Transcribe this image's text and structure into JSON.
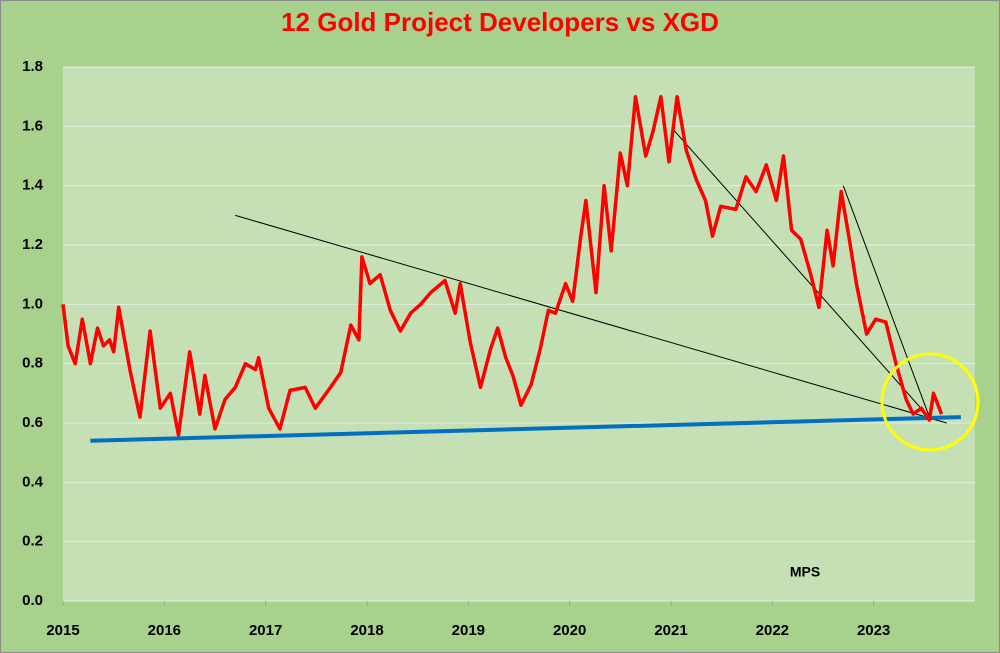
{
  "chart_data": {
    "type": "line",
    "title": "12 Gold Project Developers vs XGD",
    "annotation": "MPS",
    "x": [
      2015.0,
      2015.05,
      2015.12,
      2015.19,
      2015.27,
      2015.34,
      2015.4,
      2015.46,
      2015.5,
      2015.55,
      2015.66,
      2015.76,
      2015.86,
      2015.96,
      2016.06,
      2016.14,
      2016.25,
      2016.35,
      2016.4,
      2016.5,
      2016.6,
      2016.7,
      2016.8,
      2016.9,
      2016.93,
      2017.03,
      2017.14,
      2017.24,
      2017.39,
      2017.49,
      2017.64,
      2017.74,
      2017.84,
      2017.92,
      2017.95,
      2018.03,
      2018.13,
      2018.23,
      2018.33,
      2018.43,
      2018.53,
      2018.63,
      2018.77,
      2018.87,
      2018.92,
      2019.02,
      2019.12,
      2019.22,
      2019.29,
      2019.37,
      2019.44,
      2019.52,
      2019.62,
      2019.71,
      2019.79,
      2019.86,
      2019.96,
      2020.03,
      2020.11,
      2020.16,
      2020.26,
      2020.34,
      2020.41,
      2020.5,
      2020.57,
      2020.65,
      2020.75,
      2020.82,
      2020.9,
      2020.98,
      2021.06,
      2021.15,
      2021.25,
      2021.34,
      2021.41,
      2021.49,
      2021.64,
      2021.74,
      2021.84,
      2021.94,
      2022.04,
      2022.11,
      2022.19,
      2022.28,
      2022.38,
      2022.46,
      2022.54,
      2022.6,
      2022.68,
      2022.76,
      2022.83,
      2022.93,
      2023.02,
      2023.12,
      2023.22,
      2023.32,
      2023.39,
      2023.47,
      2023.55,
      2023.59,
      2023.67
    ],
    "series": [
      {
        "color": "#ff0000",
        "values": [
          1.0,
          0.86,
          0.8,
          0.95,
          0.8,
          0.92,
          0.86,
          0.88,
          0.84,
          0.99,
          0.78,
          0.62,
          0.91,
          0.65,
          0.7,
          0.56,
          0.84,
          0.63,
          0.76,
          0.58,
          0.68,
          0.72,
          0.8,
          0.78,
          0.82,
          0.65,
          0.58,
          0.71,
          0.72,
          0.65,
          0.72,
          0.77,
          0.93,
          0.88,
          1.16,
          1.07,
          1.1,
          0.98,
          0.91,
          0.97,
          1.0,
          1.04,
          1.08,
          0.97,
          1.07,
          0.87,
          0.72,
          0.85,
          0.92,
          0.82,
          0.76,
          0.66,
          0.73,
          0.85,
          0.98,
          0.97,
          1.07,
          1.01,
          1.23,
          1.35,
          1.04,
          1.4,
          1.18,
          1.51,
          1.4,
          1.7,
          1.5,
          1.58,
          1.7,
          1.48,
          1.7,
          1.52,
          1.42,
          1.35,
          1.23,
          1.33,
          1.32,
          1.43,
          1.38,
          1.47,
          1.35,
          1.5,
          1.25,
          1.22,
          1.1,
          0.99,
          1.25,
          1.13,
          1.38,
          1.22,
          1.07,
          0.9,
          0.95,
          0.94,
          0.8,
          0.68,
          0.63,
          0.65,
          0.61,
          0.7,
          0.63
        ]
      }
    ],
    "trendlines": [
      {
        "color": "#000000",
        "x": [
          2016.7,
          2023.72
        ],
        "y": [
          1.3,
          0.6
        ]
      },
      {
        "color": "#000000",
        "x": [
          2021.02,
          2023.57
        ],
        "y": [
          1.59,
          0.61
        ]
      },
      {
        "color": "#000000",
        "x": [
          2022.7,
          2023.55
        ],
        "y": [
          1.4,
          0.62
        ]
      },
      {
        "color": "#0070c0",
        "x": [
          2015.27,
          2023.86
        ],
        "y": [
          0.54,
          0.62
        ]
      }
    ],
    "xlim": [
      2015,
      2024
    ],
    "xticks": [
      2015,
      2016,
      2017,
      2018,
      2019,
      2020,
      2021,
      2022,
      2023
    ],
    "ylim": [
      0,
      1.8
    ],
    "yticks": [
      {
        "value": 0,
        "label": "0.0"
      },
      0.2,
      0.4,
      0.6,
      0.8,
      {
        "value": 1,
        "label": "1.0"
      },
      1.2,
      1.4,
      1.6,
      1.8
    ],
    "grid": true
  }
}
